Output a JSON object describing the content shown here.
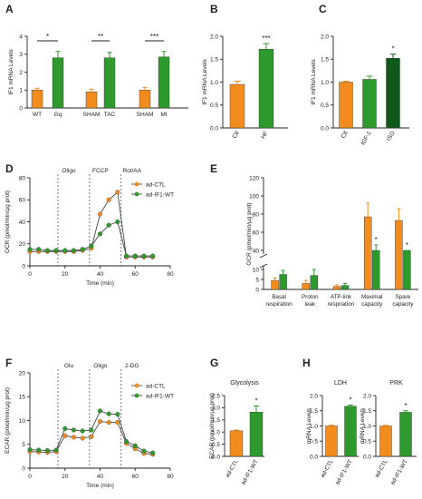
{
  "colors": {
    "orange": "#f28c1e",
    "green": "#2e9a2e",
    "darkgreen": "#0f5a1a",
    "axis": "#222222",
    "dotted": "#555555"
  },
  "chart_data": [
    {
      "id": "A",
      "panel_label": "A",
      "type": "bar",
      "ylabel": "IF1 mRNA Levels",
      "ylim": [
        0,
        4
      ],
      "yticks": [
        "0",
        "1",
        "2",
        "3",
        "4"
      ],
      "categories": [
        "WT",
        "Gq",
        "SHAM",
        "TAC",
        "SHAM",
        "MI"
      ],
      "values": [
        1.0,
        2.8,
        0.9,
        2.8,
        1.0,
        2.85
      ],
      "errors": [
        0.1,
        0.35,
        0.15,
        0.3,
        0.15,
        0.3
      ],
      "colors": [
        "orange",
        "green",
        "orange",
        "green",
        "orange",
        "green"
      ],
      "annotations": [
        {
          "text": "*",
          "pair": [
            0,
            1
          ]
        },
        {
          "text": "**",
          "pair": [
            2,
            3
          ]
        },
        {
          "text": "***",
          "pair": [
            4,
            5
          ]
        }
      ]
    },
    {
      "id": "B",
      "panel_label": "B",
      "type": "bar",
      "ylabel": "IF1 mRNA Levels",
      "ylim": [
        0,
        2.0
      ],
      "yticks": [
        "0.0",
        "0.5",
        "1.0",
        "1.5",
        "2.0"
      ],
      "categories": [
        "Ctl",
        "HF"
      ],
      "values": [
        0.95,
        1.72
      ],
      "errors": [
        0.07,
        0.12
      ],
      "colors": [
        "orange",
        "green"
      ],
      "stars": [
        "",
        "***"
      ]
    },
    {
      "id": "C",
      "panel_label": "C",
      "type": "bar",
      "ylabel": "IF1 mRNA Levels",
      "ylim": [
        0,
        2.0
      ],
      "yticks": [
        "0.0",
        "0.5",
        "1.0",
        "1.5",
        "2.0"
      ],
      "categories": [
        "Ctl",
        "IGF-1",
        "ISO"
      ],
      "values": [
        1.0,
        1.06,
        1.52
      ],
      "errors": [
        0.02,
        0.07,
        0.09
      ],
      "colors": [
        "orange",
        "green",
        "darkgreen"
      ],
      "stars": [
        "",
        "",
        "*"
      ]
    },
    {
      "id": "D",
      "panel_label": "D",
      "type": "line",
      "ylabel": "OCR (pmol/min/µg prot)",
      "xlabel": "Time (min)",
      "xlim": [
        0,
        80
      ],
      "ylim": [
        0,
        80
      ],
      "xticks": [
        "0",
        "20",
        "40",
        "60",
        "80"
      ],
      "yticks": [
        "0",
        "20",
        "40",
        "60",
        "80"
      ],
      "markers": [
        {
          "label": "Oligo",
          "x": 16
        },
        {
          "label": "FCCP",
          "x": 34
        },
        {
          "label": "Rot/AA",
          "x": 52
        }
      ],
      "legend": [
        "ad-CTL",
        "ad-IF1-WT"
      ],
      "series": [
        {
          "name": "ad-CTL",
          "color": "orange",
          "x": [
            0,
            5,
            10,
            15,
            20,
            25,
            30,
            35,
            40,
            45,
            50,
            55,
            60,
            65,
            70
          ],
          "y": [
            13,
            13,
            13,
            13,
            13,
            13,
            14,
            16,
            47,
            60,
            67,
            8,
            8,
            8,
            8
          ]
        },
        {
          "name": "ad-IF1-WT",
          "color": "green",
          "x": [
            0,
            5,
            10,
            15,
            20,
            25,
            30,
            35,
            40,
            45,
            50,
            55,
            60,
            65,
            70
          ],
          "y": [
            15,
            15,
            14,
            14,
            14,
            14,
            15,
            18,
            29,
            37,
            40,
            9,
            9,
            9,
            9
          ]
        }
      ]
    },
    {
      "id": "E",
      "panel_label": "E",
      "type": "bar",
      "ylabel": "OCR (pmol/min/µg prot)",
      "categories": [
        "Basal respiration",
        "Proton leak",
        "ATP-link respiration",
        "Maximal capacity",
        "Spare capacity"
      ],
      "yticks_low": [
        "0",
        "5",
        "10"
      ],
      "yticks_high": [
        "40",
        "60",
        "80",
        "100",
        "120"
      ],
      "series": [
        {
          "name": "ad-CTL",
          "color": "orange",
          "values": [
            4.5,
            3.0,
            1.5,
            77,
            73
          ],
          "errors": [
            1.2,
            1.5,
            0.8,
            15,
            13
          ]
        },
        {
          "name": "ad-IF1-WT",
          "color": "green",
          "values": [
            7.5,
            7.0,
            2.0,
            40,
            31
          ],
          "errors": [
            2.0,
            3.0,
            1.0,
            6,
            5
          ]
        }
      ],
      "stars": [
        "",
        "",
        "",
        "*",
        "*"
      ]
    },
    {
      "id": "F",
      "panel_label": "F",
      "type": "line",
      "ylabel": "ECAR (pmol/min/µg prot)",
      "xlabel": "Time (min)",
      "xlim": [
        0,
        80
      ],
      "ylim": [
        0,
        20
      ],
      "xticks": [
        "0",
        "20",
        "40",
        "60",
        "80"
      ],
      "yticks": [
        "0",
        "5",
        "10",
        "15",
        "20"
      ],
      "markers": [
        {
          "label": "Glu",
          "x": 16
        },
        {
          "label": "Oligo",
          "x": 34
        },
        {
          "label": "2-DG",
          "x": 52
        }
      ],
      "legend": [
        "ad-CTL",
        "ad-IF1-WT"
      ],
      "series": [
        {
          "name": "ad-CTL",
          "color": "orange",
          "x": [
            0,
            5,
            10,
            15,
            20,
            25,
            30,
            35,
            40,
            45,
            50,
            55,
            60,
            65,
            70
          ],
          "y": [
            3.5,
            3.4,
            3.3,
            3.5,
            6.8,
            6.5,
            6.3,
            6.6,
            9.8,
            9.6,
            9.6,
            5.2,
            4.1,
            3.1,
            2.9
          ]
        },
        {
          "name": "ad-IF1-WT",
          "color": "green",
          "x": [
            0,
            5,
            10,
            15,
            20,
            25,
            30,
            35,
            40,
            45,
            50,
            55,
            60,
            65,
            70
          ],
          "y": [
            3.9,
            3.8,
            3.7,
            3.8,
            8.3,
            8.0,
            7.8,
            8.0,
            12.0,
            11.4,
            11.3,
            5.6,
            4.7,
            3.6,
            3.2
          ]
        }
      ]
    },
    {
      "id": "G",
      "panel_label": "G",
      "type": "bar",
      "title": "Glycolysis",
      "ylabel": "ECAR (pmol/min/µg prot)",
      "ylim": [
        0,
        2.5
      ],
      "yticks": [
        "0.0",
        "0.5",
        "1.0",
        "1.5",
        "2.0",
        "2.5"
      ],
      "categories": [
        "ad-CTL",
        "ad-IF1-WT"
      ],
      "values": [
        1.05,
        1.82
      ],
      "errors": [
        0.03,
        0.25
      ],
      "colors": [
        "orange",
        "green"
      ],
      "stars": [
        "",
        "*"
      ]
    },
    {
      "id": "H1",
      "panel_label": "H",
      "type": "bar",
      "title": "LDH",
      "ylabel": "mRNA Levels",
      "ylim": [
        0,
        2.0
      ],
      "yticks": [
        "0.0",
        "0.5",
        "1.0",
        "1.5",
        "2.0"
      ],
      "categories": [
        "ad-CTL",
        "ad-IF1-WT"
      ],
      "values": [
        1.0,
        1.65
      ],
      "errors": [
        0.03,
        0.04
      ],
      "colors": [
        "orange",
        "green"
      ],
      "stars": [
        "",
        "*"
      ]
    },
    {
      "id": "H2",
      "panel_label": "",
      "type": "bar",
      "title": "PRK",
      "ylabel": "mRNA Levels",
      "ylim": [
        0,
        2.0
      ],
      "yticks": [
        "0.0",
        "0.5",
        "1.0",
        "1.5",
        "2.0"
      ],
      "categories": [
        "ad-CTL",
        "ad-IF1-WT"
      ],
      "values": [
        1.0,
        1.45
      ],
      "errors": [
        0.02,
        0.05
      ],
      "colors": [
        "orange",
        "green"
      ],
      "stars": [
        "",
        "*"
      ]
    }
  ]
}
